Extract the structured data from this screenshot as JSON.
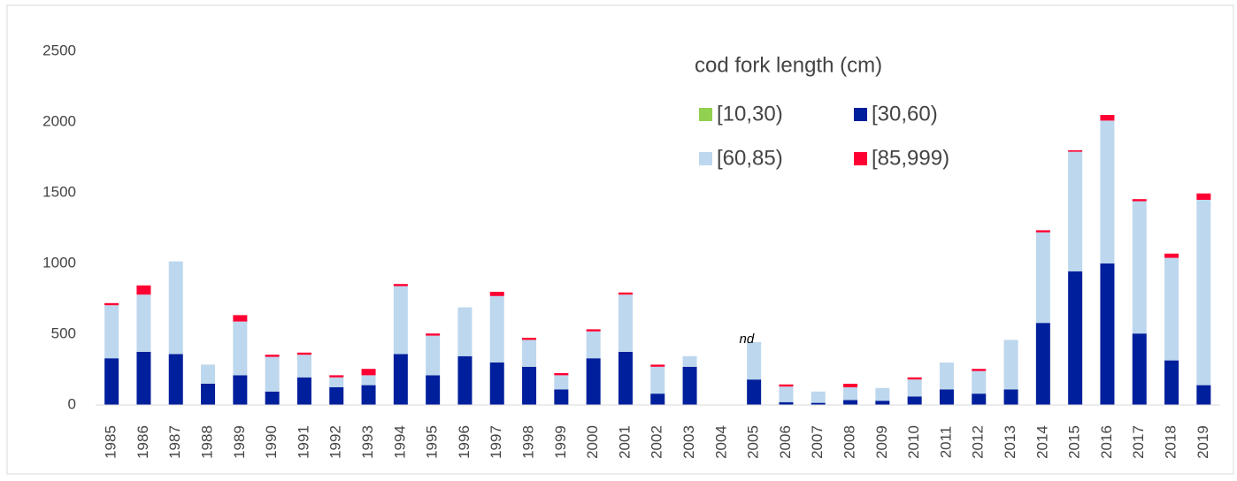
{
  "chart_data": {
    "type": "stacked_bar",
    "legend_title": "cod fork length (cm)",
    "annotation": "nd",
    "categories": [
      "1985",
      "1986",
      "1987",
      "1988",
      "1989",
      "1990",
      "1991",
      "1992",
      "1993",
      "1994",
      "1995",
      "1996",
      "1997",
      "1998",
      "1999",
      "2000",
      "2001",
      "2002",
      "2003",
      "2004",
      "2005",
      "2006",
      "2007",
      "2008",
      "2009",
      "2010",
      "2011",
      "2012",
      "2013",
      "2014",
      "2015",
      "2016",
      "2017",
      "2018",
      "2019"
    ],
    "series": [
      {
        "name": "[10,30)",
        "color": "#92d050",
        "values": [
          0,
          0,
          0,
          0,
          0,
          0,
          0,
          0,
          0,
          0,
          0,
          0,
          0,
          0,
          0,
          0,
          0,
          0,
          0,
          null,
          0,
          0,
          0,
          0,
          0,
          0,
          0,
          0,
          0,
          0,
          0,
          0,
          0,
          0,
          0
        ]
      },
      {
        "name": "[30,60)",
        "color": "#001f9c",
        "values": [
          330,
          375,
          360,
          150,
          210,
          95,
          195,
          125,
          140,
          360,
          210,
          345,
          300,
          270,
          110,
          330,
          375,
          80,
          270,
          null,
          180,
          20,
          15,
          35,
          30,
          60,
          110,
          80,
          110,
          580,
          945,
          1000,
          505,
          315,
          140
        ]
      },
      {
        "name": "[60,85)",
        "color": "#bdd7ee",
        "values": [
          375,
          405,
          655,
          135,
          380,
          245,
          160,
          70,
          70,
          480,
          280,
          345,
          470,
          190,
          100,
          190,
          405,
          190,
          75,
          null,
          265,
          110,
          80,
          90,
          90,
          120,
          190,
          160,
          350,
          640,
          845,
          1010,
          935,
          725,
          1310
        ]
      },
      {
        "name": "[85,999)",
        "color": "#ff0033",
        "values": [
          15,
          65,
          0,
          0,
          45,
          15,
          15,
          15,
          45,
          15,
          15,
          0,
          30,
          15,
          15,
          15,
          15,
          15,
          0,
          null,
          0,
          15,
          0,
          25,
          0,
          15,
          0,
          15,
          0,
          15,
          10,
          40,
          15,
          30,
          45
        ]
      }
    ],
    "ylim": [
      0,
      2500
    ],
    "yticks": [
      0,
      500,
      1000,
      1500,
      2000,
      2500
    ],
    "grid": false
  }
}
